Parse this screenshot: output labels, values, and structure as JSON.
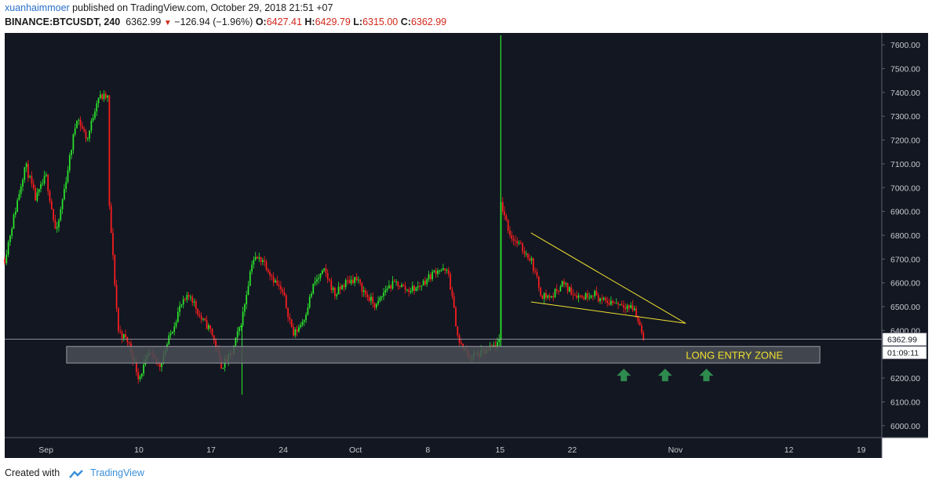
{
  "header": {
    "author": "xuanhaimmoer",
    "published_text": "published on TradingView.com, October 29, 2018 21:51 +07",
    "symbol": "BINANCE:BTCUSDT, 240",
    "last": "6362.99",
    "change": "−126.94 (−1.96%)",
    "o_label": "O:",
    "o_value": "6427.41",
    "h_label": "H:",
    "h_value": "6429.79",
    "l_label": "L:",
    "l_value": "6315.00",
    "c_label": "C:",
    "c_value": "6362.99"
  },
  "footer": {
    "created_with": "Created with",
    "brand": "TradingView"
  },
  "colors": {
    "background": "#131722",
    "up": "#2ce82c",
    "down": "#ff1e1e",
    "trendline": "#f0e130",
    "zone_fill": "#4a4d55",
    "arrow": "#2e8b4e"
  },
  "chart_data": {
    "type": "candlestick",
    "y_axis": {
      "ylim": [
        5950,
        7650
      ],
      "ticks": [
        "6000.00",
        "6100.00",
        "6200.00",
        "6300.00",
        "6400.00",
        "6500.00",
        "6600.00",
        "6700.00",
        "6800.00",
        "6900.00",
        "7000.00",
        "7100.00",
        "7200.00",
        "7300.00",
        "7400.00",
        "7500.00",
        "7600.00"
      ]
    },
    "x_axis": {
      "range": [
        "2018-08-28",
        "2018-11-21"
      ],
      "labels": [
        {
          "date": "2018-09-01",
          "label": "Sep"
        },
        {
          "date": "2018-09-10",
          "label": "10"
        },
        {
          "date": "2018-09-17",
          "label": "17"
        },
        {
          "date": "2018-09-24",
          "label": "24"
        },
        {
          "date": "2018-10-01",
          "label": "Oct"
        },
        {
          "date": "2018-10-08",
          "label": "8"
        },
        {
          "date": "2018-10-15",
          "label": "15"
        },
        {
          "date": "2018-10-22",
          "label": "22"
        },
        {
          "date": "2018-11-01",
          "label": "Nov"
        },
        {
          "date": "2018-11-12",
          "label": "12"
        },
        {
          "date": "2018-11-19",
          "label": "19"
        }
      ]
    },
    "price_label": "6362.99",
    "countdown_label": "01:09:11",
    "price_path": [
      [
        "2018-08-28",
        6700
      ],
      [
        "2018-08-30",
        7100
      ],
      [
        "2018-08-31",
        6950
      ],
      [
        "2018-09-01",
        7050
      ],
      [
        "2018-09-02",
        6800
      ],
      [
        "2018-09-04",
        7300
      ],
      [
        "2018-09-05",
        7200
      ],
      [
        "2018-09-06",
        7380
      ],
      [
        "2018-09-07",
        7380
      ],
      [
        "2018-09-07",
        7000
      ],
      [
        "2018-09-08",
        6400
      ],
      [
        "2018-09-09",
        6350
      ],
      [
        "2018-09-10",
        6200
      ],
      [
        "2018-09-11",
        6300
      ],
      [
        "2018-09-12",
        6250
      ],
      [
        "2018-09-14",
        6500
      ],
      [
        "2018-09-15",
        6550
      ],
      [
        "2018-09-16",
        6450
      ],
      [
        "2018-09-17",
        6400
      ],
      [
        "2018-09-18",
        6250
      ],
      [
        "2018-09-19",
        6300
      ],
      [
        "2018-09-20",
        6450
      ],
      [
        "2018-09-21",
        6700
      ],
      [
        "2018-09-22",
        6700
      ],
      [
        "2018-09-23",
        6620
      ],
      [
        "2018-09-24",
        6550
      ],
      [
        "2018-09-25",
        6380
      ],
      [
        "2018-09-26",
        6450
      ],
      [
        "2018-09-27",
        6600
      ],
      [
        "2018-09-28",
        6650
      ],
      [
        "2018-09-29",
        6550
      ],
      [
        "2018-09-30",
        6600
      ],
      [
        "2018-10-01",
        6620
      ],
      [
        "2018-10-02",
        6550
      ],
      [
        "2018-10-03",
        6500
      ],
      [
        "2018-10-04",
        6580
      ],
      [
        "2018-10-05",
        6600
      ],
      [
        "2018-10-06",
        6570
      ],
      [
        "2018-10-07",
        6580
      ],
      [
        "2018-10-08",
        6620
      ],
      [
        "2018-10-09",
        6660
      ],
      [
        "2018-10-10",
        6640
      ],
      [
        "2018-10-11",
        6350
      ],
      [
        "2018-10-12",
        6290
      ],
      [
        "2018-10-13",
        6300
      ],
      [
        "2018-10-14",
        6320
      ],
      [
        "2018-10-15",
        6350
      ],
      [
        "2018-10-15",
        6950
      ],
      [
        "2018-10-16",
        6800
      ],
      [
        "2018-10-17",
        6750
      ],
      [
        "2018-10-18",
        6700
      ],
      [
        "2018-10-19",
        6550
      ],
      [
        "2018-10-20",
        6540
      ],
      [
        "2018-10-21",
        6600
      ],
      [
        "2018-10-22",
        6560
      ],
      [
        "2018-10-23",
        6540
      ],
      [
        "2018-10-24",
        6560
      ],
      [
        "2018-10-25",
        6520
      ],
      [
        "2018-10-26",
        6520
      ],
      [
        "2018-10-27",
        6510
      ],
      [
        "2018-10-28",
        6490
      ],
      [
        "2018-10-29",
        6363
      ]
    ],
    "annotations": {
      "zone_label": "LONG ENTRY ZONE",
      "zone": {
        "from": "2018-09-03",
        "to": "2018-11-15",
        "price_low": 6263,
        "price_high": 6333
      },
      "upper_trendline": [
        [
          "2018-10-18",
          6810
        ],
        [
          "2018-11-02",
          6430
        ]
      ],
      "lower_trendline": [
        [
          "2018-10-18",
          6520
        ],
        [
          "2018-11-02",
          6430
        ]
      ],
      "arrows": [
        {
          "date": "2018-10-27",
          "price": 6210
        },
        {
          "date": "2018-10-31",
          "price": 6210
        },
        {
          "date": "2018-11-04",
          "price": 6210
        }
      ]
    }
  }
}
